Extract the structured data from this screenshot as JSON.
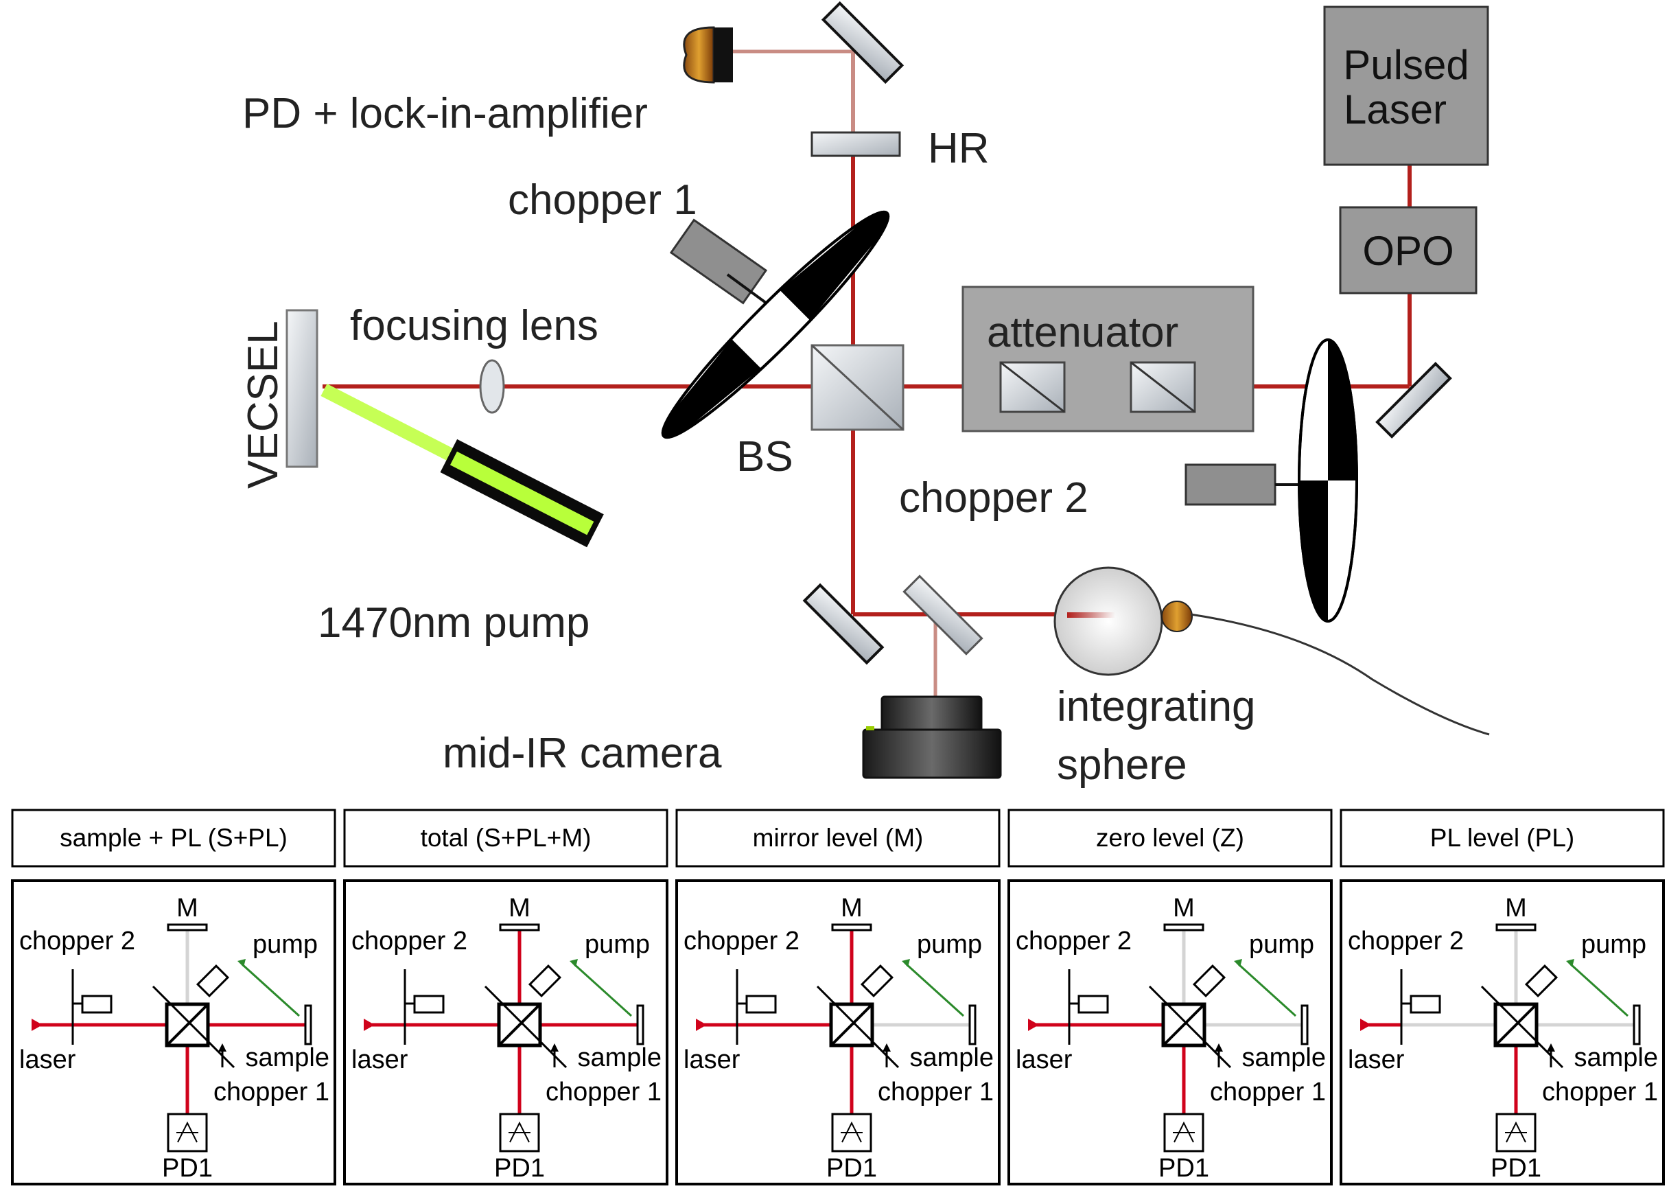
{
  "setup": {
    "labels": {
      "pd": "PD + lock-in-amplifier",
      "hr": "HR",
      "chopper1": "chopper 1",
      "vecsel": "VECSEL",
      "focusing_lens": "focusing lens",
      "bs": "BS",
      "attenuator": "attenuator",
      "chopper2": "chopper 2",
      "pump": "1470nm pump",
      "camera": "mid-IR camera",
      "sphere_1": "integrating",
      "sphere_2": "sphere",
      "pulsed_1": "Pulsed",
      "pulsed_2": "Laser",
      "opo": "OPO"
    },
    "colors": {
      "beam": "#b3201c",
      "pump_beam": "#b8ff3a",
      "box_fill": "#9a9a9a"
    }
  },
  "panel_labels": {
    "m": "M",
    "chopper2": "chopper 2",
    "pump": "pump",
    "laser": "laser",
    "sample": "sample",
    "chopper1": "chopper 1",
    "pd1": "PD1"
  },
  "configs": [
    {
      "title": "sample + PL (S+PL)",
      "m_arm": false,
      "sample_arm": true,
      "laser_arm": true
    },
    {
      "title": "total (S+PL+M)",
      "m_arm": true,
      "sample_arm": true,
      "laser_arm": true
    },
    {
      "title": "mirror level (M)",
      "m_arm": true,
      "sample_arm": false,
      "laser_arm": true
    },
    {
      "title": "zero level (Z)",
      "m_arm": false,
      "sample_arm": false,
      "laser_arm": true
    },
    {
      "title": "PL level (PL)",
      "m_arm": false,
      "sample_arm": false,
      "laser_arm": false
    }
  ],
  "panel_colors": {
    "active": "#d0021b",
    "inactive": "#d4d4d4",
    "pump": "#2b8a2b"
  }
}
